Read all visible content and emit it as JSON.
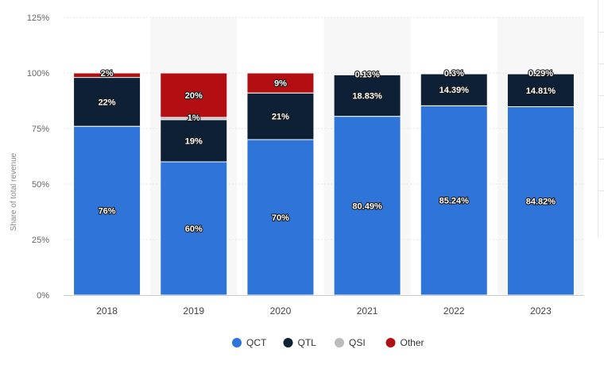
{
  "chart_data": {
    "type": "bar",
    "stacked": true,
    "categories": [
      "2018",
      "2019",
      "2020",
      "2021",
      "2022",
      "2023"
    ],
    "series": [
      {
        "name": "QCT",
        "color": "#2e74d9",
        "values": [
          76,
          60,
          70,
          80.49,
          85.24,
          84.82
        ],
        "labels": [
          "76%",
          "60%",
          "70%",
          "80.49%",
          "85.24%",
          "84.82%"
        ]
      },
      {
        "name": "QTL",
        "color": "#0e2035",
        "values": [
          22,
          19,
          21,
          18.83,
          14.39,
          14.81
        ],
        "labels": [
          "22%",
          "19%",
          "21%",
          "18.83%",
          "14.39%",
          "14.81%"
        ]
      },
      {
        "name": "QSI",
        "color": "#bcbcbc",
        "values": [
          0,
          1,
          0,
          0.13,
          0.3,
          0.29
        ],
        "labels": [
          "",
          "1%",
          "",
          "0.13%",
          "0.3%",
          "0.29%"
        ]
      },
      {
        "name": "Other",
        "color": "#b30f12",
        "values": [
          2,
          20,
          9,
          0,
          0,
          0
        ],
        "labels": [
          "2%",
          "20%",
          "9%",
          "",
          "",
          ""
        ]
      }
    ],
    "ylabel": "Share of total revenue",
    "xlabel": "",
    "ylim": [
      0,
      125
    ],
    "yticks": [
      0,
      25,
      50,
      75,
      100,
      125
    ],
    "ytick_labels": [
      "0%",
      "25%",
      "50%",
      "75%",
      "100%",
      "125%"
    ],
    "grid": true,
    "legend_position": "bottom-center",
    "alternating_column_shading": true
  }
}
